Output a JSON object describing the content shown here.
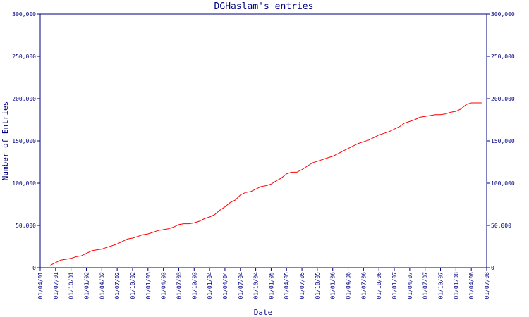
{
  "chart_data": {
    "type": "line",
    "title": "DGHaslam's entries",
    "xlabel": "Date",
    "ylabel": "Number of Entries",
    "ylim": [
      0,
      300000
    ],
    "yticks": [
      0,
      50000,
      100000,
      150000,
      200000,
      250000,
      300000
    ],
    "ytick_labels": [
      "0",
      "50,000",
      "100,000",
      "150,000",
      "200,000",
      "250,000",
      "300,000"
    ],
    "xlim": [
      "2001-04-01",
      "2008-07-01"
    ],
    "xtick_labels": [
      "01/04/01",
      "01/07/01",
      "01/10/01",
      "01/01/02",
      "01/04/02",
      "01/07/02",
      "01/10/02",
      "01/01/03",
      "01/04/03",
      "01/07/03",
      "01/10/03",
      "01/01/04",
      "01/04/04",
      "01/07/04",
      "01/10/04",
      "01/01/05",
      "01/04/05",
      "01/07/05",
      "01/10/05",
      "01/01/06",
      "01/04/06",
      "01/07/06",
      "01/10/06",
      "01/01/07",
      "01/04/07",
      "01/07/07",
      "01/10/07",
      "01/01/08",
      "01/04/08",
      "01/07/08"
    ],
    "grid": false,
    "colors": {
      "axis": "#000080",
      "line": "#ff0000",
      "background": "#ffffff"
    },
    "series": [
      {
        "x": [
          "2001-06-01",
          "2001-07-01",
          "2001-08-01",
          "2001-09-01",
          "2001-10-01",
          "2001-11-01",
          "2001-12-01",
          "2002-01-01",
          "2002-02-01",
          "2002-03-01",
          "2002-04-01",
          "2002-05-01",
          "2002-06-01",
          "2002-07-01",
          "2002-08-01",
          "2002-09-01",
          "2002-10-01",
          "2002-11-01",
          "2002-12-01",
          "2003-01-01",
          "2003-02-01",
          "2003-03-01",
          "2003-04-01",
          "2003-05-01",
          "2003-06-01",
          "2003-07-01",
          "2003-08-01",
          "2003-09-01",
          "2003-10-01",
          "2003-11-01",
          "2003-12-01",
          "2004-01-01",
          "2004-02-01",
          "2004-03-01",
          "2004-04-01",
          "2004-05-01",
          "2004-06-01",
          "2004-07-01",
          "2004-08-01",
          "2004-09-01",
          "2004-10-01",
          "2004-11-01",
          "2004-12-01",
          "2005-01-01",
          "2005-02-01",
          "2005-03-01",
          "2005-04-01",
          "2005-05-01",
          "2005-06-01",
          "2005-07-01",
          "2005-08-01",
          "2005-09-01",
          "2005-10-01",
          "2005-11-01",
          "2005-12-01",
          "2006-01-01",
          "2006-02-01",
          "2006-03-01",
          "2006-04-01",
          "2006-05-01",
          "2006-06-01",
          "2006-07-01",
          "2006-08-01",
          "2006-09-01",
          "2006-10-01",
          "2006-11-01",
          "2006-12-01",
          "2007-01-01",
          "2007-02-01",
          "2007-03-01",
          "2007-04-01",
          "2007-05-01",
          "2007-06-01",
          "2007-07-01",
          "2007-08-01",
          "2007-09-01",
          "2007-10-01",
          "2007-11-01",
          "2007-12-01",
          "2008-01-01",
          "2008-02-01",
          "2008-03-01",
          "2008-04-01",
          "2008-05-01",
          "2008-06-01"
        ],
        "values": [
          3000,
          6000,
          9000,
          10000,
          11000,
          13000,
          14000,
          17000,
          20000,
          21000,
          22000,
          24000,
          26000,
          28000,
          31000,
          34000,
          35000,
          37000,
          39000,
          40000,
          42000,
          44000,
          45000,
          46000,
          48000,
          51000,
          52000,
          52000,
          53000,
          55000,
          58000,
          60000,
          63000,
          68000,
          72000,
          77000,
          80000,
          86000,
          89000,
          90000,
          93000,
          96000,
          97000,
          99000,
          103000,
          106000,
          111000,
          113000,
          113000,
          116000,
          120000,
          124000,
          126000,
          128000,
          130000,
          132000,
          135000,
          138000,
          141000,
          144000,
          147000,
          149000,
          151000,
          154000,
          157000,
          159000,
          161000,
          164000,
          167000,
          171000,
          173000,
          175000,
          178000,
          179000,
          180000,
          181000,
          181000,
          182000,
          184000,
          185000,
          188000,
          193000,
          195000,
          195000,
          195000
        ]
      }
    ]
  }
}
